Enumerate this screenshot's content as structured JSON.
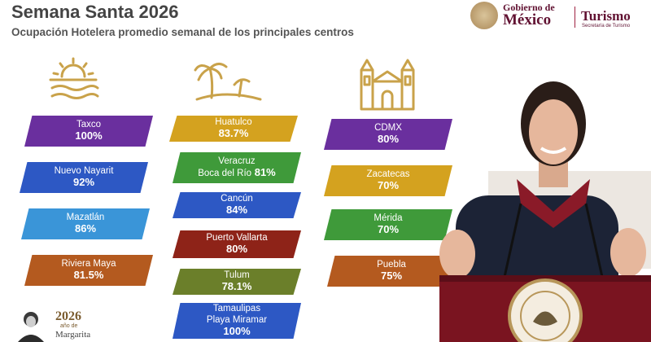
{
  "header": {
    "title": "Semana Santa 2026",
    "subtitle": "Ocupación Hotelera promedio semanal de los principales centros"
  },
  "gov_logo": {
    "line1": "Gobierno de",
    "line2": "México",
    "line3": "Turismo",
    "line4": "Secretaría de Turismo"
  },
  "icons": [
    "sun-beach-icon",
    "palm-beach-icon",
    "cathedral-icon"
  ],
  "columns": [
    {
      "items": [
        {
          "name": "Taxco",
          "value": "100%",
          "color": "#6a2f9e"
        },
        {
          "name": "Nuevo Nayarit",
          "value": "92%",
          "color": "#2d58c4"
        },
        {
          "name": "Mazatlán",
          "value": "86%",
          "color": "#3a95d8"
        },
        {
          "name": "Riviera Maya",
          "value": "81.5%",
          "color": "#b45a1f"
        }
      ]
    },
    {
      "items": [
        {
          "name": "Huatulco",
          "value": "83.7%",
          "color": "#d4a21f"
        },
        {
          "name": "Veracruz",
          "name2": "Boca del Río",
          "value": "81%",
          "color": "#3f9a3a"
        },
        {
          "name": "Cancún",
          "value": "84%",
          "color": "#2d58c4"
        },
        {
          "name": "Puerto Vallarta",
          "value": "80%",
          "color": "#8e2318"
        },
        {
          "name": "Tulum",
          "value": "78.1%",
          "color": "#6b7f2a"
        },
        {
          "name": "Tamaulipas",
          "name2": "Playa Miramar",
          "value": "100%",
          "color": "#2d58c4"
        }
      ]
    },
    {
      "items": [
        {
          "name": "CDMX",
          "value": "80%",
          "color": "#6a2f9e"
        },
        {
          "name": "Zacatecas",
          "value": "70%",
          "color": "#d4a21f"
        },
        {
          "name": "Mérida",
          "value": "70%",
          "color": "#3f9a3a"
        },
        {
          "name": "Puebla",
          "value": "75%",
          "color": "#b45a1f"
        }
      ]
    }
  ],
  "footer": {
    "year": "2026",
    "line1": "año de",
    "line2": "Margarita"
  },
  "colors": {
    "gov": "#611232",
    "gold": "#c9a24a"
  }
}
